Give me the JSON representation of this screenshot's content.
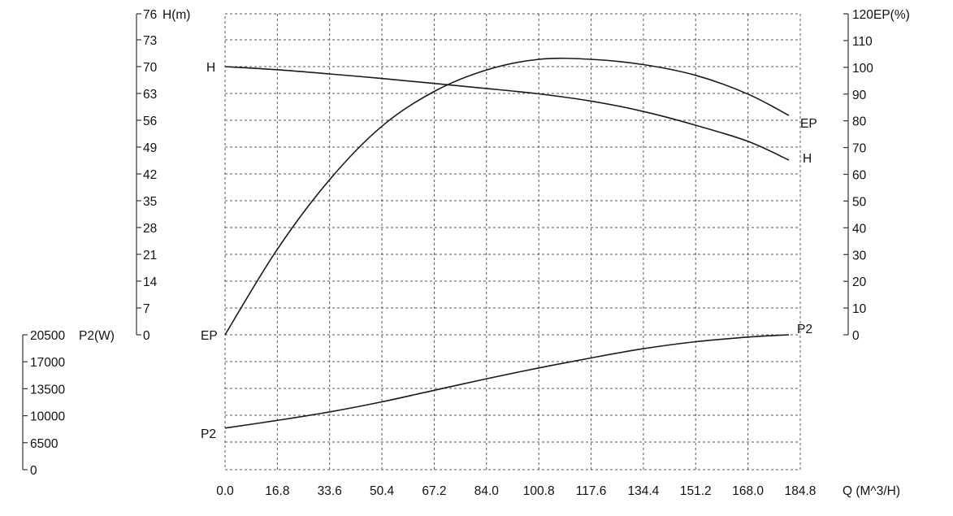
{
  "chart_data": {
    "type": "line",
    "grid": true,
    "x_axis": {
      "label": "Q (M^3/H)",
      "ticks": [
        "0.0",
        "16.8",
        "33.6",
        "50.4",
        "67.2",
        "84.0",
        "100.8",
        "117.6",
        "134.4",
        "151.2",
        "168.0",
        "184.8"
      ],
      "range": [
        0,
        184.8
      ]
    },
    "axes": {
      "H": {
        "label": "H(m)",
        "ticks": [
          "0",
          "7",
          "14",
          "21",
          "28",
          "35",
          "42",
          "49",
          "56",
          "63",
          "70",
          "73",
          "76"
        ],
        "range": [
          0,
          76
        ]
      },
      "EP": {
        "label": "EP(%)",
        "ticks": [
          "0",
          "10",
          "20",
          "30",
          "40",
          "50",
          "60",
          "70",
          "80",
          "90",
          "100",
          "110",
          "120"
        ],
        "range": [
          0,
          120
        ]
      },
      "P2": {
        "label": "P2(W)",
        "ticks": [
          "0",
          "6500",
          "10000",
          "13500",
          "17000",
          "20500"
        ],
        "range": [
          0,
          20500
        ]
      }
    },
    "series": [
      {
        "name": "H",
        "axis": "H",
        "x": [
          0,
          16.8,
          33.6,
          50.4,
          67.2,
          84.0,
          100.8,
          117.6,
          134.4,
          151.2,
          168.0,
          184.8
        ],
        "values": [
          70,
          69.2,
          68.1,
          66.9,
          65.6,
          64.3,
          62.9,
          61.0,
          58.3,
          54.7,
          50.5,
          45.6
        ]
      },
      {
        "name": "EP",
        "axis": "EP",
        "x": [
          0,
          16.8,
          33.6,
          50.4,
          67.2,
          84.0,
          100.8,
          117.6,
          134.4,
          151.2,
          168.0,
          184.8
        ],
        "values": [
          0,
          32,
          58,
          78,
          91,
          99,
          103,
          103,
          101,
          97,
          90,
          82
        ]
      },
      {
        "name": "P2",
        "axis": "P2",
        "x": [
          0,
          16.8,
          33.6,
          50.4,
          67.2,
          84.0,
          100.8,
          117.6,
          134.4,
          151.2,
          168.0,
          184.8
        ],
        "values": [
          8400,
          9400,
          10500,
          11800,
          13300,
          14800,
          16200,
          17500,
          18700,
          19600,
          20200,
          20500
        ]
      }
    ]
  }
}
